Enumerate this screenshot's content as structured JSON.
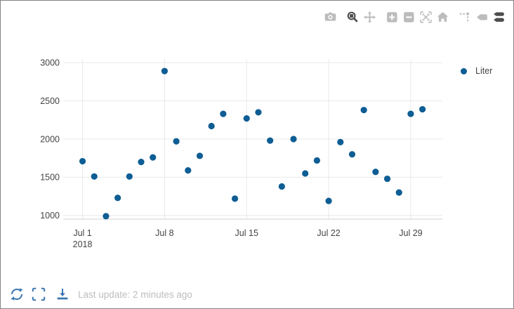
{
  "chart_data": {
    "type": "scatter",
    "title": "",
    "xlabel": "",
    "ylabel": "",
    "series": [
      {
        "name": "Liter",
        "marker_color": "#0e5d94",
        "points": [
          {
            "date": "2018-07-01",
            "value": 1710
          },
          {
            "date": "2018-07-02",
            "value": 1510
          },
          {
            "date": "2018-07-03",
            "value": 990
          },
          {
            "date": "2018-07-04",
            "value": 1230
          },
          {
            "date": "2018-07-05",
            "value": 1510
          },
          {
            "date": "2018-07-06",
            "value": 1700
          },
          {
            "date": "2018-07-07",
            "value": 1760
          },
          {
            "date": "2018-07-08",
            "value": 2890
          },
          {
            "date": "2018-07-09",
            "value": 1970
          },
          {
            "date": "2018-07-10",
            "value": 1590
          },
          {
            "date": "2018-07-11",
            "value": 1780
          },
          {
            "date": "2018-07-12",
            "value": 2170
          },
          {
            "date": "2018-07-13",
            "value": 2330
          },
          {
            "date": "2018-07-14",
            "value": 1220
          },
          {
            "date": "2018-07-15",
            "value": 2270
          },
          {
            "date": "2018-07-16",
            "value": 2350
          },
          {
            "date": "2018-07-17",
            "value": 1980
          },
          {
            "date": "2018-07-18",
            "value": 1380
          },
          {
            "date": "2018-07-19",
            "value": 2000
          },
          {
            "date": "2018-07-20",
            "value": 1550
          },
          {
            "date": "2018-07-21",
            "value": 1720
          },
          {
            "date": "2018-07-22",
            "value": 1190
          },
          {
            "date": "2018-07-23",
            "value": 1960
          },
          {
            "date": "2018-07-24",
            "value": 1800
          },
          {
            "date": "2018-07-25",
            "value": 2380
          },
          {
            "date": "2018-07-26",
            "value": 1570
          },
          {
            "date": "2018-07-27",
            "value": 1480
          },
          {
            "date": "2018-07-28",
            "value": 1300
          },
          {
            "date": "2018-07-29",
            "value": 2330
          },
          {
            "date": "2018-07-30",
            "value": 2390
          }
        ]
      }
    ],
    "x_axis": {
      "grid": true,
      "range_days": [
        -0.65,
        31.7
      ],
      "ticks": [
        {
          "day": 1,
          "label": "Jul 1",
          "sublabel": "2018"
        },
        {
          "day": 8,
          "label": "Jul 8"
        },
        {
          "day": 15,
          "label": "Jul 15"
        },
        {
          "day": 22,
          "label": "Jul 22"
        },
        {
          "day": 29,
          "label": "Jul 29"
        }
      ]
    },
    "y_axis": {
      "grid": true,
      "range": [
        952,
        3048
      ],
      "ticks": [
        1000,
        1500,
        2000,
        2500,
        3000
      ]
    },
    "colors": {
      "grid": "#e9e9e9",
      "axis_line": "#d2d2d2",
      "tick_label": "#444444"
    },
    "legend_position": "right",
    "marker_radius": 4.6
  },
  "modebar": {
    "inactive_color": "#bcbcbc",
    "active_color": "#4d4d4d",
    "icons": [
      {
        "name": "camera",
        "active": false
      },
      {
        "name": "zoom",
        "active": true
      },
      {
        "name": "pan",
        "active": false
      },
      {
        "name": "zoom-in",
        "active": false
      },
      {
        "name": "zoom-out",
        "active": false
      },
      {
        "name": "autoscale",
        "active": false
      },
      {
        "name": "reset-home",
        "active": false
      },
      {
        "name": "spikelines",
        "active": false
      },
      {
        "name": "hover-closest",
        "active": false
      },
      {
        "name": "hover-compare",
        "active": true
      }
    ]
  },
  "footer": {
    "icon_color": "#3a76b2",
    "text_color": "#bdbdbd",
    "icons": [
      "refresh",
      "fullscreen",
      "download"
    ],
    "status_text": "Last update: 2 minutes ago"
  }
}
